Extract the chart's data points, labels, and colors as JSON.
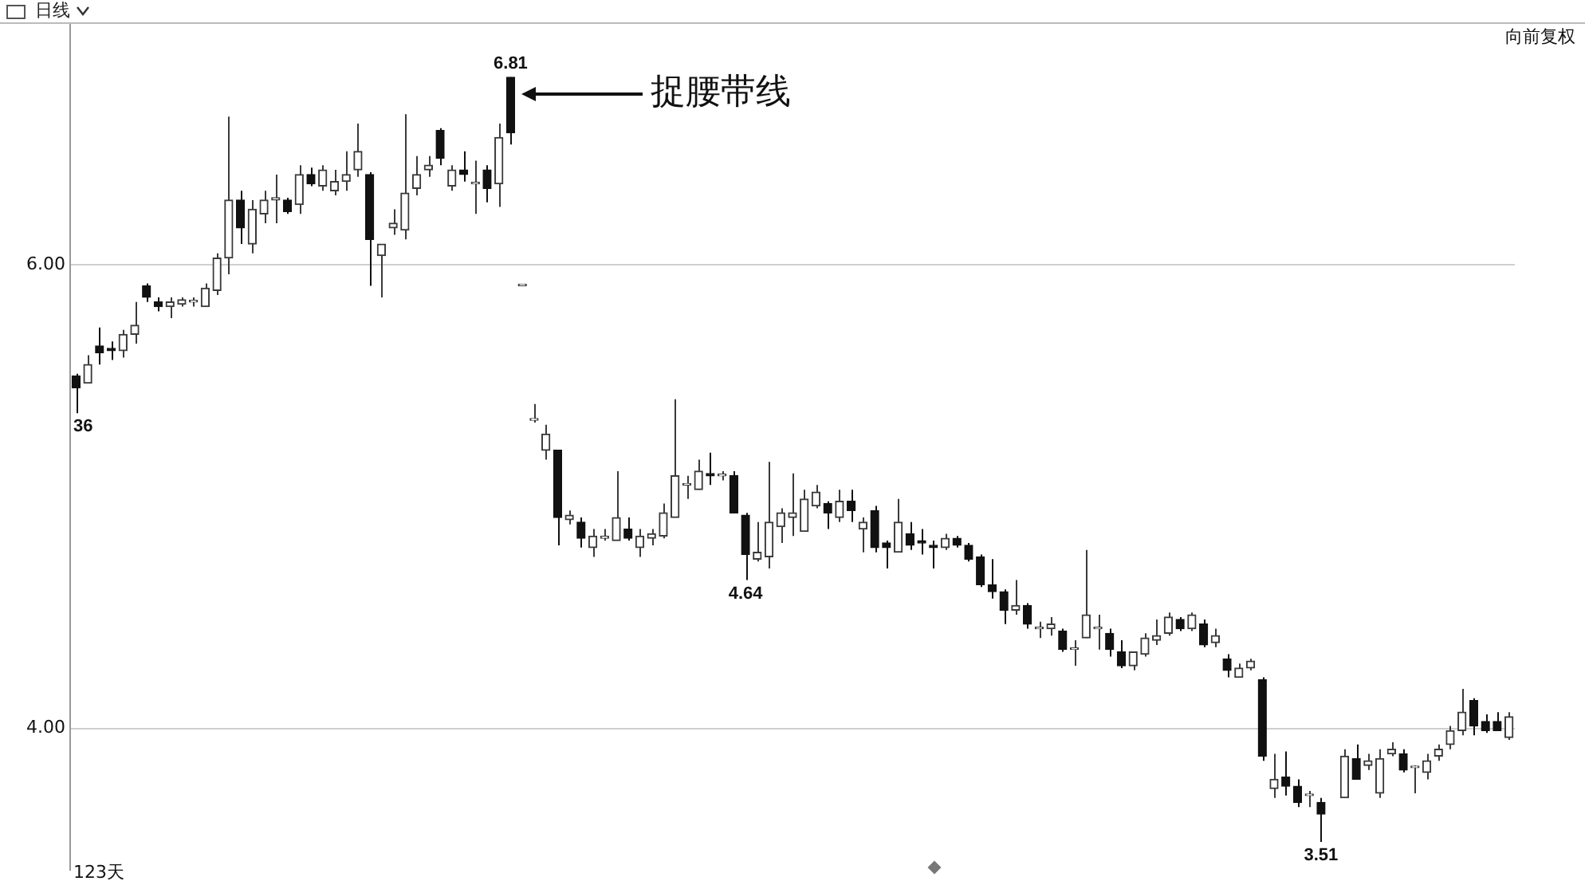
{
  "chart_data": {
    "type": "candlestick",
    "title": "日线",
    "colors": [
      "#111111",
      "#3a3a3a",
      "#111111",
      "#111111",
      "#3a3a3a",
      "#3a3a3a",
      "#111111",
      "#111111",
      "#3a3a3a",
      "#3a3a3a",
      "#3a3a3a",
      "#3a3a3a",
      "#3a3a3a",
      "#3a3a3a",
      "#111111",
      "#3a3a3a",
      "#3a3a3a",
      "#3a3a3a",
      "#111111",
      "#3a3a3a",
      "#111111",
      "#3a3a3a",
      "#3a3a3a",
      "#3a3a3a",
      "#3a3a3a",
      "#111111",
      "#3a3a3a",
      "#3a3a3a",
      "#3a3a3a",
      "#3a3a3a",
      "#3a3a3a",
      "#111111",
      "#3a3a3a",
      "#111111",
      "#3a3a3a",
      "#111111",
      "#3a3a3a",
      "#111111",
      "#3a3a3a",
      "#3a3a3a",
      "#3a3a3a",
      "#111111",
      "#3a3a3a",
      "#111111",
      "#3a3a3a",
      "#3a3a3a",
      "#3a3a3a",
      "#111111",
      "#3a3a3a",
      "#3a3a3a",
      "#3a3a3a",
      "#3a3a3a",
      "#3a3a3a",
      "#3a3a3a",
      "#111111",
      "#3a3a3a",
      "#111111",
      "#111111",
      "#3a3a3a",
      "#3a3a3a",
      "#3a3a3a",
      "#3a3a3a",
      "#3a3a3a",
      "#3a3a3a",
      "#111111",
      "#3a3a3a",
      "#111111",
      "#3a3a3a",
      "#111111",
      "#111111",
      "#3a3a3a",
      "#111111",
      "#111111",
      "#111111",
      "#3a3a3a",
      "#111111",
      "#111111",
      "#111111",
      "#111111",
      "#111111",
      "#3a3a3a",
      "#111111",
      "#3a3a3a",
      "#3a3a3a",
      "#111111",
      "#3a3a3a",
      "#3a3a3a",
      "#3a3a3a",
      "#111111",
      "#111111",
      "#3a3a3a",
      "#3a3a3a",
      "#3a3a3a",
      "#3a3a3a",
      "#111111",
      "#3a3a3a",
      "#111111",
      "#3a3a3a",
      "#111111",
      "#3a3a3a",
      "#3a3a3a",
      "#111111",
      "#3a3a3a",
      "#111111",
      "#111111",
      "#3a3a3a",
      "#111111",
      null,
      "#3a3a3a",
      "#111111",
      "#3a3a3a",
      "#3a3a3a",
      "#3a3a3a",
      "#111111",
      "#3a3a3a",
      "#3a3a3a",
      "#3a3a3a",
      "#3a3a3a",
      "#3a3a3a",
      "#111111",
      "#111111",
      "#111111",
      "#3a3a3a"
    ],
    "categories": [
      null,
      null,
      null,
      null,
      null,
      null,
      null,
      null,
      null,
      null,
      null,
      null,
      null,
      null,
      null,
      null,
      null,
      null,
      null,
      null,
      null,
      null,
      null,
      null,
      null,
      null,
      null,
      null,
      null,
      null,
      null,
      null,
      null,
      null,
      null,
      null,
      null,
      null,
      null,
      null,
      null,
      null,
      null,
      null,
      null,
      null,
      null,
      null,
      null,
      null,
      null,
      null,
      null,
      null,
      null,
      null,
      null,
      null,
      null,
      null,
      null,
      null,
      null,
      null,
      null,
      null,
      null,
      null,
      null,
      null,
      null,
      null,
      null,
      null,
      null,
      null,
      null,
      null,
      null,
      null,
      null,
      null,
      null,
      null,
      null,
      null,
      null,
      null,
      null,
      null,
      null,
      null,
      null,
      null,
      null,
      null,
      null,
      null,
      null,
      null,
      null,
      null,
      null,
      null,
      null,
      null,
      null,
      null,
      null,
      null,
      null,
      null,
      null,
      null,
      null,
      null,
      null,
      null,
      null,
      null,
      null,
      null,
      null
    ],
    "ohlc": [
      [
        5.52,
        5.53,
        5.36,
        5.47
      ],
      [
        5.49,
        5.61,
        5.49,
        5.57
      ],
      [
        5.65,
        5.73,
        5.57,
        5.62
      ],
      [
        5.64,
        5.67,
        5.59,
        5.63
      ],
      [
        5.63,
        5.72,
        5.6,
        5.7
      ],
      [
        5.7,
        5.84,
        5.66,
        5.74
      ],
      [
        5.91,
        5.92,
        5.84,
        5.86
      ],
      [
        5.84,
        5.86,
        5.8,
        5.82
      ],
      [
        5.82,
        5.86,
        5.77,
        5.84
      ],
      [
        5.83,
        5.86,
        5.82,
        5.85
      ],
      [
        5.84,
        5.86,
        5.82,
        5.84
      ],
      [
        5.82,
        5.92,
        5.82,
        5.9
      ],
      [
        5.89,
        6.05,
        5.87,
        6.03
      ],
      [
        6.03,
        6.64,
        5.96,
        6.28
      ],
      [
        6.28,
        6.32,
        6.09,
        6.16
      ],
      [
        6.09,
        6.28,
        6.05,
        6.24
      ],
      [
        6.22,
        6.32,
        6.18,
        6.28
      ],
      [
        6.28,
        6.39,
        6.18,
        6.29
      ],
      [
        6.28,
        6.29,
        6.22,
        6.23
      ],
      [
        6.26,
        6.43,
        6.22,
        6.39
      ],
      [
        6.39,
        6.42,
        6.34,
        6.35
      ],
      [
        6.34,
        6.43,
        6.32,
        6.41
      ],
      [
        6.32,
        6.41,
        6.3,
        6.36
      ],
      [
        6.36,
        6.49,
        6.32,
        6.39
      ],
      [
        6.41,
        6.61,
        6.38,
        6.49
      ],
      [
        6.39,
        6.4,
        5.91,
        6.11
      ],
      [
        6.04,
        6.09,
        5.86,
        6.09
      ],
      [
        6.16,
        6.24,
        6.13,
        6.18
      ],
      [
        6.15,
        6.65,
        6.11,
        6.31
      ],
      [
        6.33,
        6.47,
        6.3,
        6.39
      ],
      [
        6.41,
        6.47,
        6.38,
        6.43
      ],
      [
        6.58,
        6.59,
        6.43,
        6.46
      ],
      [
        6.34,
        6.43,
        6.32,
        6.41
      ],
      [
        6.41,
        6.49,
        6.36,
        6.39
      ],
      [
        6.35,
        6.45,
        6.22,
        6.35
      ],
      [
        6.41,
        6.43,
        6.27,
        6.33
      ],
      [
        6.35,
        6.61,
        6.25,
        6.55
      ],
      [
        6.81,
        6.81,
        6.52,
        6.57
      ],
      [
        5.91,
        5.91,
        5.91,
        5.91
      ],
      [
        5.33,
        5.4,
        5.32,
        5.33
      ],
      [
        5.2,
        5.31,
        5.16,
        5.27
      ],
      [
        5.2,
        5.2,
        4.79,
        4.91
      ],
      [
        4.9,
        4.94,
        4.88,
        4.92
      ],
      [
        4.89,
        4.91,
        4.78,
        4.82
      ],
      [
        4.78,
        4.86,
        4.74,
        4.83
      ],
      [
        4.82,
        4.86,
        4.81,
        4.83
      ],
      [
        4.81,
        5.11,
        4.81,
        4.91
      ],
      [
        4.86,
        4.91,
        4.81,
        4.82
      ],
      [
        4.78,
        4.86,
        4.74,
        4.83
      ],
      [
        4.82,
        4.86,
        4.79,
        4.84
      ],
      [
        4.83,
        4.97,
        4.82,
        4.93
      ],
      [
        4.91,
        5.42,
        4.91,
        5.09
      ],
      [
        5.05,
        5.09,
        4.99,
        5.05
      ],
      [
        5.03,
        5.16,
        5.03,
        5.11
      ],
      [
        5.1,
        5.19,
        5.05,
        5.09
      ],
      [
        5.09,
        5.11,
        5.07,
        5.09
      ],
      [
        5.09,
        5.11,
        4.93,
        4.93
      ],
      [
        4.92,
        4.93,
        4.64,
        4.75
      ],
      [
        4.73,
        4.89,
        4.72,
        4.76
      ],
      [
        4.74,
        5.15,
        4.69,
        4.89
      ],
      [
        4.87,
        4.95,
        4.8,
        4.93
      ],
      [
        4.91,
        5.1,
        4.83,
        4.93
      ],
      [
        4.85,
        5.03,
        4.85,
        4.99
      ],
      [
        4.96,
        5.05,
        4.95,
        5.02
      ],
      [
        4.97,
        4.98,
        4.86,
        4.93
      ],
      [
        4.91,
        5.03,
        4.89,
        4.98
      ],
      [
        4.98,
        5.03,
        4.89,
        4.94
      ],
      [
        4.86,
        4.91,
        4.76,
        4.89
      ],
      [
        4.94,
        4.96,
        4.76,
        4.78
      ],
      [
        4.8,
        4.81,
        4.69,
        4.78
      ],
      [
        4.76,
        4.99,
        4.76,
        4.89
      ],
      [
        4.84,
        4.89,
        4.77,
        4.79
      ],
      [
        4.81,
        4.86,
        4.75,
        4.8
      ],
      [
        4.79,
        4.81,
        4.69,
        4.78
      ],
      [
        4.78,
        4.84,
        4.77,
        4.82
      ],
      [
        4.82,
        4.83,
        4.78,
        4.79
      ],
      [
        4.79,
        4.8,
        4.72,
        4.73
      ],
      [
        4.74,
        4.75,
        4.61,
        4.62
      ],
      [
        4.62,
        4.73,
        4.56,
        4.59
      ],
      [
        4.59,
        4.6,
        4.45,
        4.51
      ],
      [
        4.51,
        4.64,
        4.49,
        4.53
      ],
      [
        4.53,
        4.54,
        4.43,
        4.45
      ],
      [
        4.43,
        4.46,
        4.39,
        4.43
      ],
      [
        4.43,
        4.48,
        4.4,
        4.45
      ],
      [
        4.42,
        4.43,
        4.33,
        4.34
      ],
      [
        4.34,
        4.38,
        4.27,
        4.34
      ],
      [
        4.39,
        4.77,
        4.39,
        4.49
      ],
      [
        4.43,
        4.49,
        4.34,
        4.43
      ],
      [
        4.41,
        4.43,
        4.31,
        4.34
      ],
      [
        4.33,
        4.38,
        4.26,
        4.27
      ],
      [
        4.27,
        4.33,
        4.25,
        4.33
      ],
      [
        4.32,
        4.41,
        4.31,
        4.39
      ],
      [
        4.38,
        4.47,
        4.36,
        4.4
      ],
      [
        4.41,
        4.5,
        4.4,
        4.48
      ],
      [
        4.47,
        4.48,
        4.42,
        4.43
      ],
      [
        4.43,
        4.5,
        4.42,
        4.49
      ],
      [
        4.45,
        4.47,
        4.35,
        4.36
      ],
      [
        4.37,
        4.43,
        4.35,
        4.4
      ],
      [
        4.3,
        4.32,
        4.22,
        4.25
      ],
      [
        4.22,
        4.28,
        4.22,
        4.26
      ],
      [
        4.26,
        4.3,
        4.25,
        4.29
      ],
      [
        4.21,
        4.22,
        3.86,
        3.88
      ],
      [
        3.74,
        3.89,
        3.7,
        3.78
      ],
      [
        3.79,
        3.9,
        3.71,
        3.75
      ],
      [
        3.75,
        3.78,
        3.66,
        3.68
      ],
      [
        3.71,
        3.73,
        3.66,
        3.71
      ],
      [
        3.68,
        3.7,
        3.51,
        3.63
      ],
      null,
      [
        3.7,
        3.91,
        3.7,
        3.88
      ],
      [
        3.87,
        3.93,
        3.78,
        3.78
      ],
      [
        3.84,
        3.89,
        3.82,
        3.86
      ],
      [
        3.72,
        3.91,
        3.7,
        3.87
      ],
      [
        3.89,
        3.94,
        3.88,
        3.91
      ],
      [
        3.89,
        3.91,
        3.81,
        3.82
      ],
      [
        3.83,
        3.84,
        3.72,
        3.83
      ],
      [
        3.81,
        3.89,
        3.78,
        3.86
      ],
      [
        3.88,
        3.93,
        3.86,
        3.91
      ],
      [
        3.93,
        4.01,
        3.91,
        3.99
      ],
      [
        3.99,
        4.17,
        3.97,
        4.07
      ],
      [
        4.12,
        4.13,
        3.97,
        4.01
      ],
      [
        4.03,
        4.06,
        3.98,
        3.99
      ],
      [
        4.03,
        4.07,
        3.99,
        3.99
      ],
      [
        3.96,
        4.07,
        3.95,
        4.05
      ]
    ],
    "ylim": [
      3.39,
      7.04
    ],
    "yticks": [
      {
        "value": 4,
        "label": "4.00"
      },
      {
        "value": 6,
        "label": "6.00"
      }
    ],
    "grid": "y",
    "tick_labels": "y",
    "annotations": [
      "向前复权",
      "123天",
      "捉腰带线",
      "36",
      {
        "text": "6.81",
        "y": 6.81
      },
      {
        "text": "4.64",
        "y": 4.64
      },
      {
        "text": "3.51",
        "y": 3.51
      }
    ]
  }
}
